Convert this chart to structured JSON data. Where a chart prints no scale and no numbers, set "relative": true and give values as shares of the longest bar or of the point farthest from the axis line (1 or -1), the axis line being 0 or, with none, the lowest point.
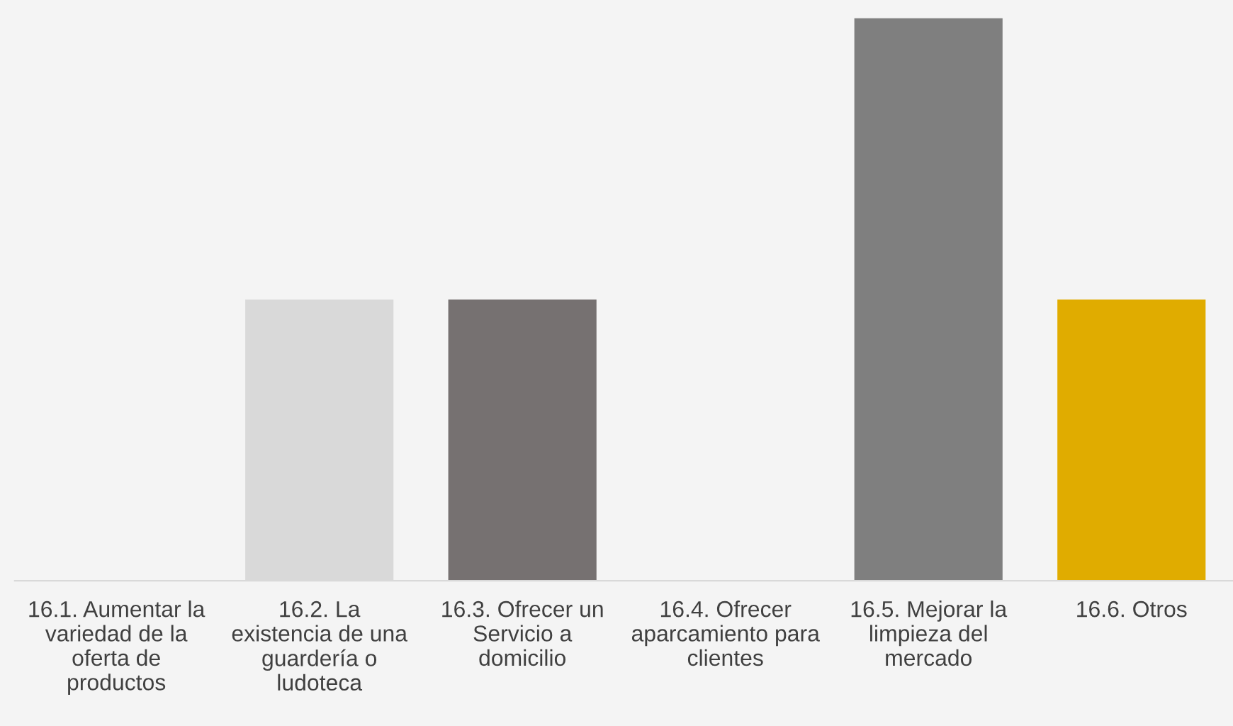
{
  "chart_data": {
    "type": "bar",
    "relative": true,
    "categories": [
      "16.1. Aumentar la variedad de la oferta de productos",
      "16.2. La existencia de una guardería o ludoteca",
      "16.3. Ofrecer un Servicio a domicilio",
      "16.4. Ofrecer aparcamiento para clientes",
      "16.5. Mejorar la limpieza del mercado",
      "16.6. Otros"
    ],
    "values": [
      0,
      0.5,
      0.5,
      0,
      1,
      0.5
    ],
    "colors": [
      "#a5a5a5",
      "#d9d9d9",
      "#767171",
      "#a5a5a5",
      "#7f7f7f",
      "#e0ac00"
    ],
    "grid": false,
    "legend": false
  }
}
